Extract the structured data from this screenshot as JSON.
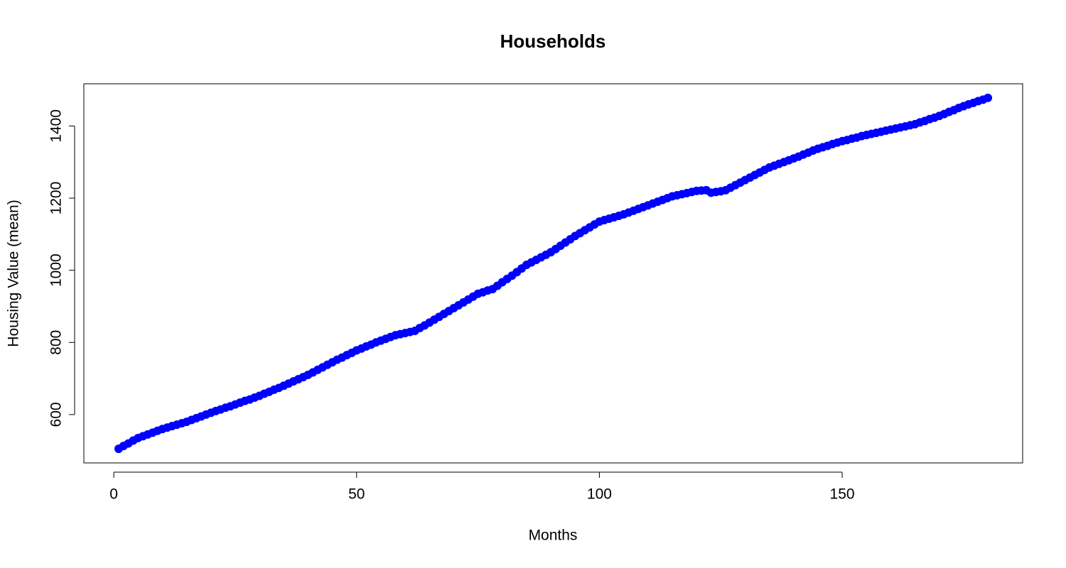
{
  "chart_data": {
    "type": "scatter",
    "title": "Households",
    "x_label": "Months",
    "y_label": "Housing Value (mean)",
    "color": "#0000ff",
    "xlim": [
      -6.16,
      187.16
    ],
    "ylim": [
      466,
      1517
    ],
    "xticks": [
      0,
      50,
      100,
      150
    ],
    "yticks": [
      600,
      800,
      1000,
      1200,
      1400
    ],
    "x": [
      1,
      2,
      3,
      4,
      5,
      6,
      7,
      8,
      9,
      10,
      11,
      12,
      13,
      14,
      15,
      16,
      17,
      18,
      19,
      20,
      21,
      22,
      23,
      24,
      25,
      26,
      27,
      28,
      29,
      30,
      31,
      32,
      33,
      34,
      35,
      36,
      37,
      38,
      39,
      40,
      41,
      42,
      43,
      44,
      45,
      46,
      47,
      48,
      49,
      50,
      51,
      52,
      53,
      54,
      55,
      56,
      57,
      58,
      59,
      60,
      61,
      62,
      63,
      64,
      65,
      66,
      67,
      68,
      69,
      70,
      71,
      72,
      73,
      74,
      75,
      76,
      77,
      78,
      79,
      80,
      81,
      82,
      83,
      84,
      85,
      86,
      87,
      88,
      89,
      90,
      91,
      92,
      93,
      94,
      95,
      96,
      97,
      98,
      99,
      100,
      101,
      102,
      103,
      104,
      105,
      106,
      107,
      108,
      109,
      110,
      111,
      112,
      113,
      114,
      115,
      116,
      117,
      118,
      119,
      120,
      121,
      122,
      123,
      124,
      125,
      126,
      127,
      128,
      129,
      130,
      131,
      132,
      133,
      134,
      135,
      136,
      137,
      138,
      139,
      140,
      141,
      142,
      143,
      144,
      145,
      146,
      147,
      148,
      149,
      150,
      151,
      152,
      153,
      154,
      155,
      156,
      157,
      158,
      159,
      160,
      161,
      162,
      163,
      164,
      165,
      166,
      167,
      168,
      169,
      170,
      171,
      172,
      173,
      174,
      175,
      176,
      177,
      178,
      179,
      180
    ],
    "values": [
      505,
      513,
      520,
      528,
      535,
      540,
      545,
      550,
      555,
      560,
      564,
      568,
      572,
      576,
      580,
      585,
      590,
      595,
      600,
      605,
      610,
      614,
      619,
      623,
      628,
      633,
      638,
      642,
      647,
      652,
      658,
      663,
      669,
      674,
      680,
      686,
      692,
      698,
      704,
      710,
      717,
      724,
      731,
      738,
      745,
      752,
      758,
      765,
      771,
      778,
      783,
      789,
      794,
      800,
      805,
      810,
      815,
      820,
      823,
      826,
      829,
      832,
      840,
      847,
      855,
      863,
      871,
      879,
      887,
      895,
      903,
      911,
      919,
      927,
      935,
      939,
      944,
      948,
      957,
      967,
      976,
      985,
      995,
      1005,
      1015,
      1022,
      1029,
      1036,
      1043,
      1050,
      1059,
      1068,
      1077,
      1086,
      1095,
      1103,
      1111,
      1119,
      1127,
      1135,
      1139,
      1143,
      1147,
      1151,
      1155,
      1160,
      1165,
      1170,
      1175,
      1180,
      1185,
      1190,
      1195,
      1200,
      1205,
      1208,
      1211,
      1214,
      1217,
      1220,
      1221,
      1222,
      1215,
      1217,
      1219,
      1222,
      1229,
      1236,
      1243,
      1250,
      1257,
      1264,
      1271,
      1278,
      1285,
      1290,
      1295,
      1300,
      1305,
      1310,
      1315,
      1321,
      1326,
      1332,
      1337,
      1341,
      1345,
      1350,
      1354,
      1358,
      1361,
      1365,
      1368,
      1372,
      1375,
      1378,
      1381,
      1384,
      1387,
      1390,
      1393,
      1396,
      1399,
      1402,
      1405,
      1410,
      1414,
      1419,
      1423,
      1428,
      1433,
      1439,
      1444,
      1450,
      1455,
      1460,
      1464,
      1469,
      1473,
      1478
    ]
  }
}
